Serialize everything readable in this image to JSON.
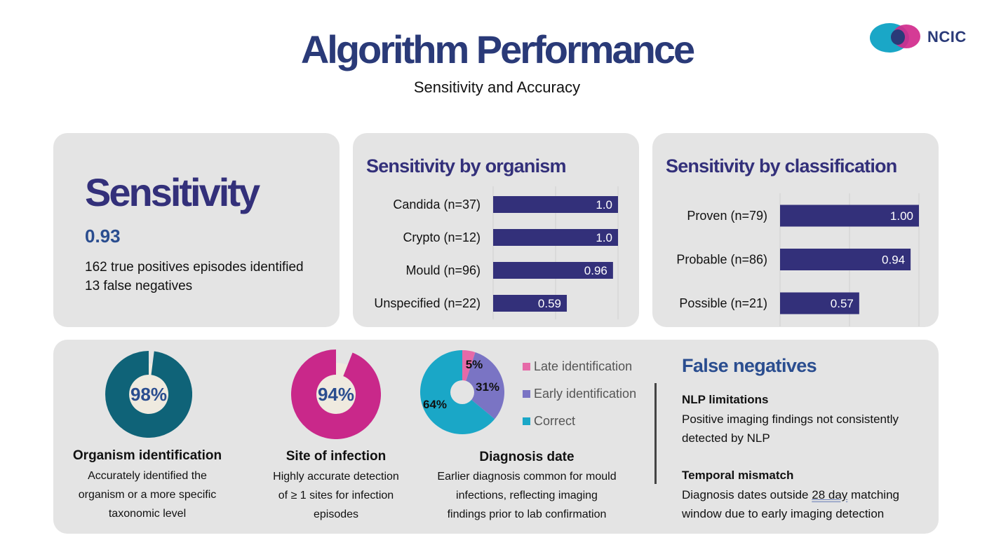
{
  "header": {
    "title": "Algorithm Performance",
    "subtitle": "Sensitivity and Accuracy",
    "logo_text": "NCIC"
  },
  "colors": {
    "navy": "#33307a",
    "blue_text": "#2a4d8f",
    "teal_dark": "#0f6378",
    "magenta": "#c9288a",
    "pink": "#e66aa8",
    "purple": "#7a74c4",
    "cyan": "#1aa7c7",
    "donut_center": "#efeadf",
    "card_bg": "#e4e4e4"
  },
  "sensitivity": {
    "heading": "Sensitivity",
    "value": "0.93",
    "line1": "162 true positives episodes identified",
    "line2": "13 false negatives"
  },
  "kpis": [
    {
      "value": "98%",
      "fraction": 0.98,
      "title": "Organism identification",
      "desc": [
        "Accurately identified the",
        "organism or a more specific",
        "taxonomic level"
      ]
    },
    {
      "value": "94%",
      "fraction": 0.94,
      "title": "Site of infection",
      "desc": [
        "Highly accurate detection",
        "of ≥ 1 sites for infection",
        "episodes"
      ]
    }
  ],
  "diagnosis": {
    "title": "Diagnosis date",
    "desc": [
      "Earlier diagnosis common for mould",
      "infections, reflecting imaging",
      "findings prior to lab confirmation"
    ]
  },
  "false_negatives": {
    "heading": "False negatives",
    "nlp_title": "NLP limitations",
    "nlp_line1": "Positive imaging findings not consistently",
    "nlp_line2": "detected by NLP",
    "temporal_title": "Temporal mismatch",
    "temporal_before": "Diagnosis dates outside ",
    "temporal_link": "28 day",
    "temporal_after": " matching",
    "temporal_line2": "window due to early imaging detection"
  },
  "chart_data": [
    {
      "type": "bar",
      "orientation": "horizontal",
      "title": "Sensitivity by organism",
      "categories": [
        "Candida (n=37)",
        "Crypto (n=12)",
        "Mould (n=96)",
        "Unspecified (n=22)"
      ],
      "values": [
        1.0,
        1.0,
        0.96,
        0.59
      ],
      "labels": [
        "1.0",
        "1.0",
        "0.96",
        "0.59"
      ],
      "xlim": [
        0,
        1
      ],
      "grid": true
    },
    {
      "type": "bar",
      "orientation": "horizontal",
      "title": "Sensitivity by classification",
      "categories": [
        "Proven (n=79)",
        "Probable (n=86)",
        "Possible (n=21)"
      ],
      "values": [
        1.0,
        0.94,
        0.57
      ],
      "labels": [
        "1.00",
        "0.94",
        "0.57"
      ],
      "xlim": [
        0,
        1
      ],
      "grid": true
    },
    {
      "type": "pie",
      "title": "",
      "categories": [
        "Late identification",
        "Early identification",
        "Correct"
      ],
      "values": [
        5,
        31,
        64
      ],
      "labels": [
        "5%",
        "31%",
        "64%"
      ],
      "colors": [
        "#e66aa8",
        "#7a74c4",
        "#1aa7c7"
      ],
      "legend": "right"
    }
  ]
}
